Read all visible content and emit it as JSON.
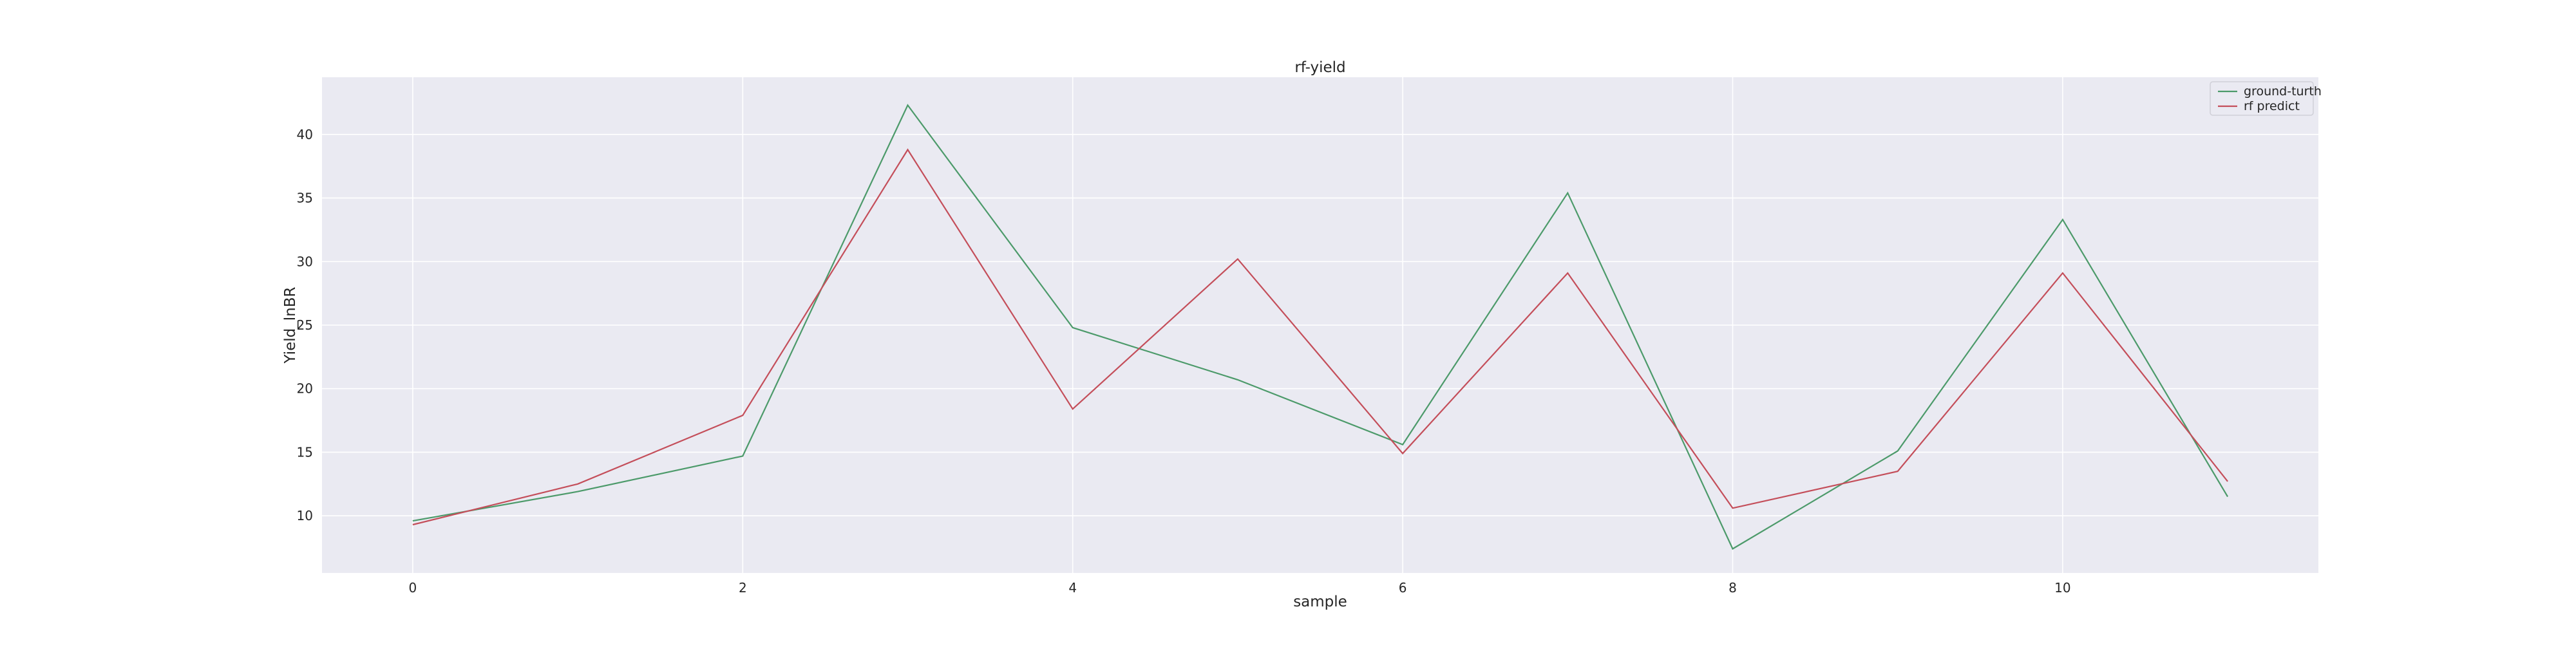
{
  "chart_data": {
    "type": "line",
    "title": "rf-yield",
    "xlabel": "sample",
    "ylabel": "Yield_lnBR",
    "x": [
      0,
      1,
      2,
      3,
      4,
      5,
      6,
      7,
      8,
      9,
      10,
      11
    ],
    "series": [
      {
        "name": "ground-turth",
        "color": "#4c9a6a",
        "values": [
          9.6,
          11.9,
          14.7,
          42.3,
          24.8,
          20.7,
          15.6,
          35.4,
          7.4,
          15.1,
          33.3,
          11.5
        ]
      },
      {
        "name": "rf predict",
        "color": "#c44e5a",
        "values": [
          9.3,
          12.5,
          17.9,
          38.8,
          18.4,
          30.2,
          14.9,
          29.1,
          10.6,
          13.5,
          29.1,
          12.7
        ]
      }
    ],
    "xlim": [
      -0.55,
      11.55
    ],
    "ylim": [
      5.5,
      44.5
    ],
    "xticks": [
      0,
      2,
      4,
      6,
      8,
      10
    ],
    "yticks": [
      10,
      15,
      20,
      25,
      30,
      35,
      40
    ],
    "grid": true,
    "background": "#eaeaf2",
    "legend_position": "top-right"
  }
}
